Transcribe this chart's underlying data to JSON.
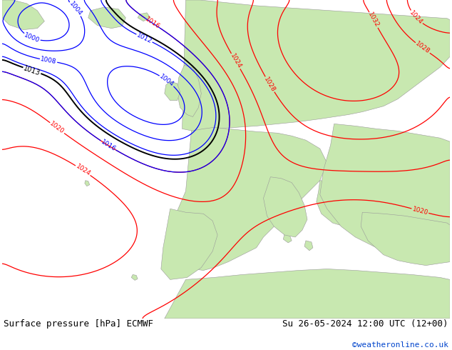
{
  "footer_left": "Surface pressure [hPa] ECMWF",
  "footer_right": "Su 26-05-2024 12:00 UTC (12+00)",
  "footer_url": "©weatheronline.co.uk",
  "ocean_color": "#d0d8e0",
  "land_color": "#c8e8b0",
  "mountain_color": "#b8c8a0",
  "fig_width": 6.34,
  "fig_height": 4.9,
  "dpi": 100,
  "footer_font_size": 9,
  "url_font_size": 8,
  "url_color": "#0044cc"
}
